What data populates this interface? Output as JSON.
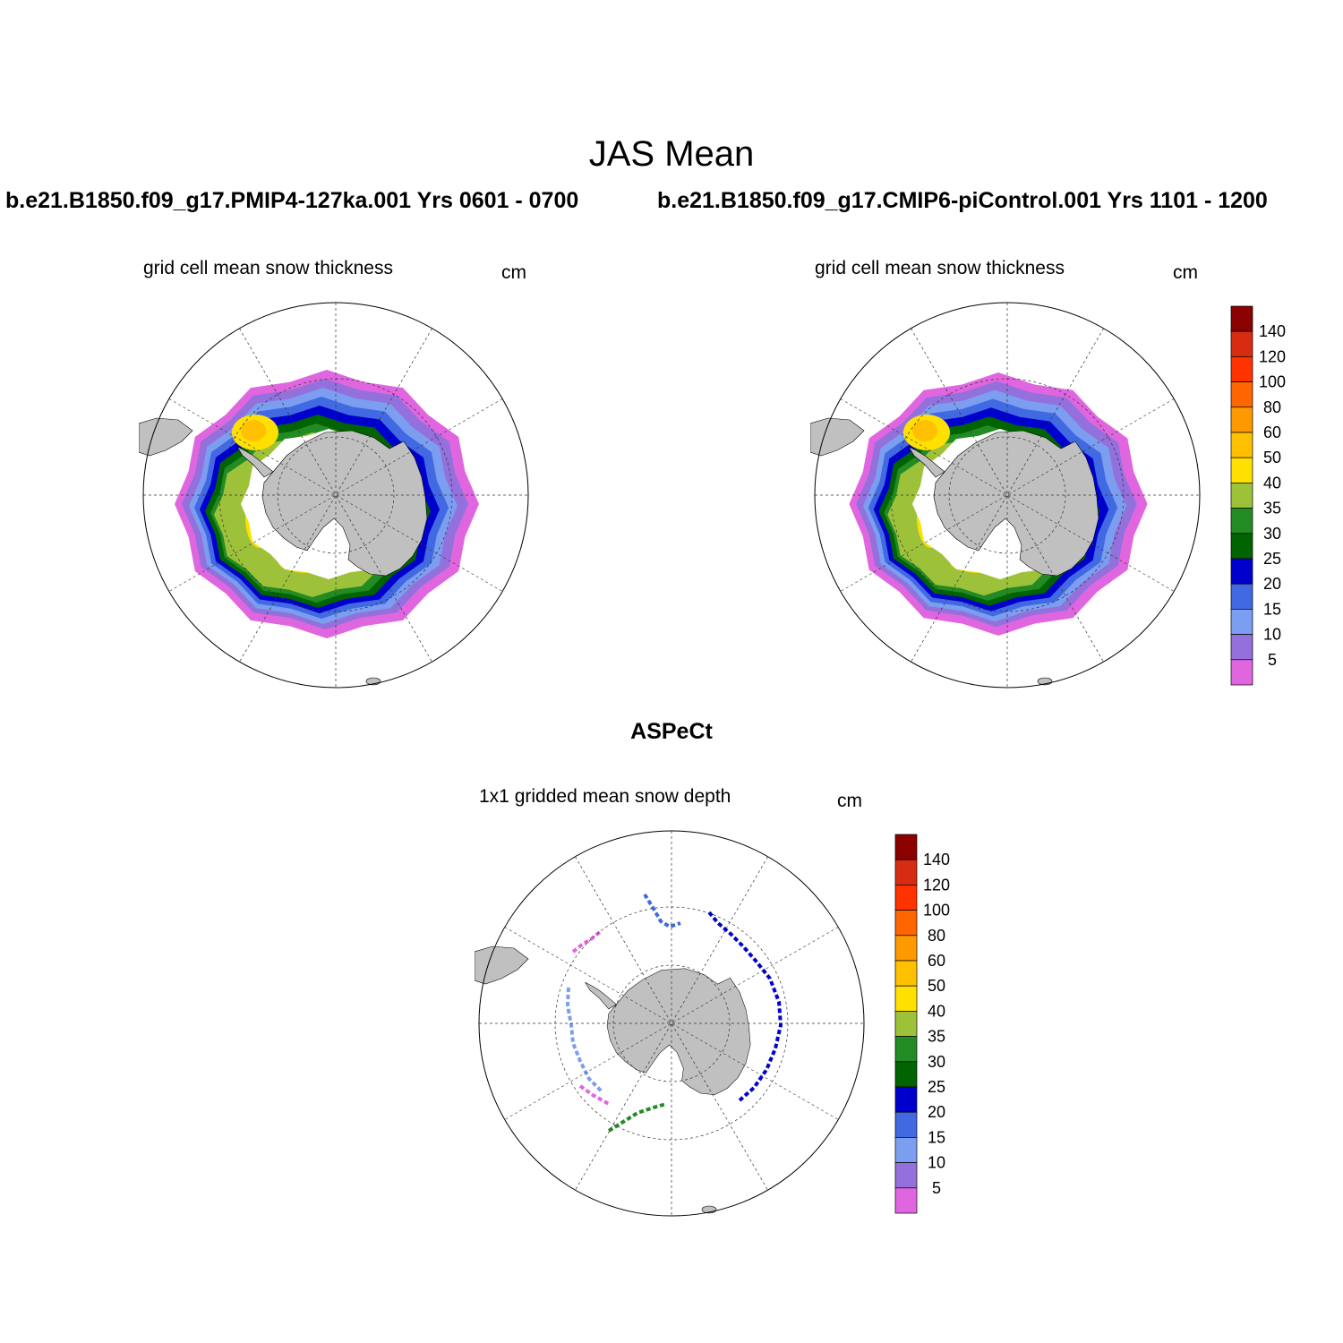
{
  "title": "JAS Mean",
  "panels": [
    {
      "case_title": "b.e21.B1850.f09_g17.PMIP4-127ka.001  Yrs 0601 - 0700",
      "var_title": "grid cell mean snow thickness",
      "units": "cm"
    },
    {
      "case_title": "b.e21.B1850.f09_g17.CMIP6-piControl.001  Yrs 1101 - 1200",
      "var_title": "grid cell mean snow thickness",
      "units": "cm"
    },
    {
      "case_title": "ASPeCt",
      "var_title": "1x1 gridded mean snow depth",
      "units": "cm"
    }
  ],
  "colorbar": {
    "labels": [
      "140",
      "120",
      "100",
      "80",
      "60",
      "50",
      "40",
      "35",
      "30",
      "25",
      "20",
      "15",
      "10",
      "5"
    ],
    "colors": [
      "#8b0000",
      "#d62c12",
      "#ff3300",
      "#ff6600",
      "#ff9900",
      "#ffc000",
      "#ffe000",
      "#9dc23a",
      "#238b23",
      "#006400",
      "#0000cd",
      "#4169e1",
      "#7b9ef0",
      "#9370db",
      "#e066e0"
    ]
  },
  "map_style": {
    "land": "#c0c0c0",
    "grid": "#333333"
  }
}
